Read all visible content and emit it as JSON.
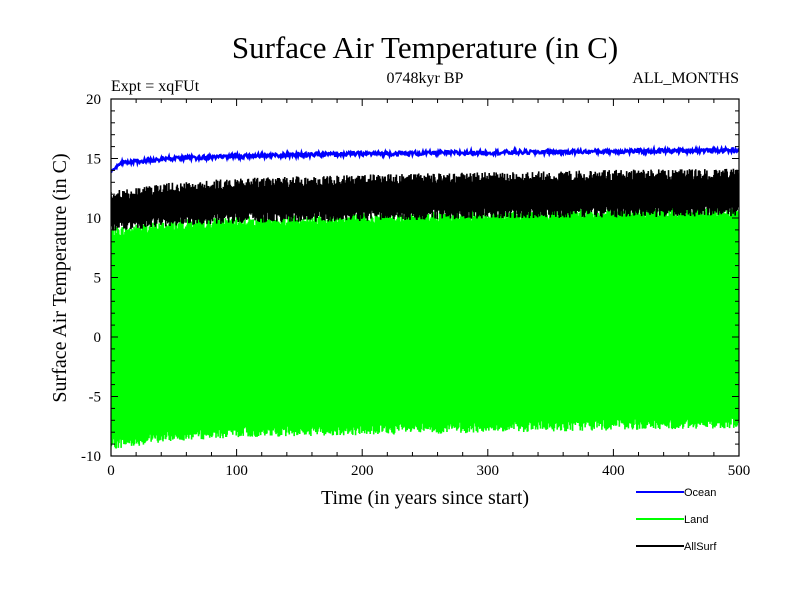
{
  "chart_data": {
    "type": "line",
    "title": "Surface Air Temperature (in C)",
    "subtitle_left": "Expt = xqFUt",
    "subtitle_center": "0748kyr BP",
    "subtitle_right": "ALL_MONTHS",
    "xlabel": "Time (in years since start)",
    "ylabel": "Surface Air Temperature (in C)",
    "xlim": [
      0,
      500
    ],
    "ylim": [
      -10,
      20
    ],
    "xticks": [
      0,
      100,
      200,
      300,
      400,
      500
    ],
    "yticks": [
      -10,
      -5,
      0,
      5,
      10,
      15,
      20
    ],
    "xtick_labels": [
      "0",
      "100",
      "200",
      "300",
      "400",
      "500"
    ],
    "ytick_labels": [
      "-10",
      "-5",
      "0",
      "5",
      "10",
      "15",
      "20"
    ],
    "grid": false,
    "legend_position": "bottom-right",
    "series": [
      {
        "name": "Land",
        "color": "#00ff00",
        "kind": "seasonal-band",
        "trend_x": [
          0,
          50,
          100,
          200,
          300,
          400,
          500
        ],
        "max_trend": [
          8.8,
          9.4,
          9.7,
          10.0,
          10.2,
          10.4,
          10.5
        ],
        "min_trend": [
          -9.0,
          -8.3,
          -8.0,
          -7.8,
          -7.6,
          -7.4,
          -7.2
        ]
      },
      {
        "name": "AllSurf",
        "color": "#000000",
        "kind": "seasonal-band",
        "trend_x": [
          0,
          50,
          100,
          200,
          300,
          400,
          500
        ],
        "max_trend": [
          11.8,
          12.6,
          12.9,
          13.2,
          13.4,
          13.6,
          13.7
        ],
        "min_trend": [
          9.3,
          9.8,
          10.0,
          10.2,
          10.4,
          10.5,
          10.6
        ]
      },
      {
        "name": "Ocean",
        "color": "#0000ff",
        "kind": "line",
        "trend_x": [
          0,
          10,
          50,
          100,
          200,
          300,
          400,
          500
        ],
        "trend_y": [
          13.9,
          14.7,
          15.0,
          15.2,
          15.4,
          15.5,
          15.6,
          15.7
        ]
      }
    ],
    "legend": [
      {
        "name": "Ocean",
        "color": "#0000ff"
      },
      {
        "name": "Land",
        "color": "#00ff00"
      },
      {
        "name": "AllSurf",
        "color": "#000000"
      }
    ]
  }
}
